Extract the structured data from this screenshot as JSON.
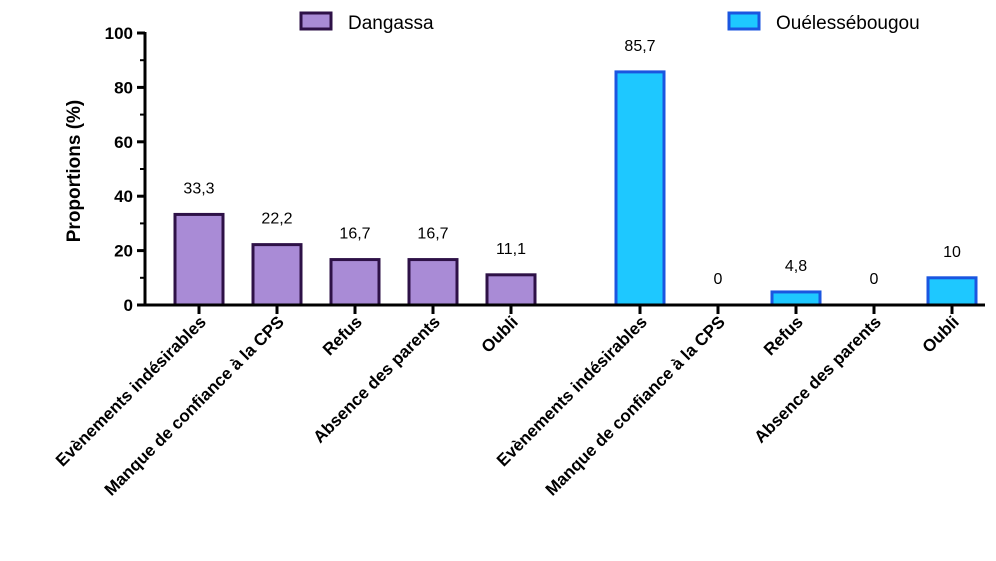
{
  "chart_data": {
    "type": "bar",
    "ylabel": "Proportions (%)",
    "ylim": [
      0,
      100
    ],
    "yticks": [
      0,
      20,
      40,
      60,
      80,
      100
    ],
    "legend_position": "top",
    "series": [
      {
        "name": "Dangassa",
        "color": "#A98BD6",
        "edge_color": "#2E1147",
        "categories": [
          "Evènements indésirables",
          "Manque de confiance à la CPS",
          "Refus",
          "Absence des parents",
          "Oubli"
        ],
        "values": [
          33.3,
          22.2,
          16.7,
          16.7,
          11.1
        ],
        "labels": [
          "33,3",
          "22,2",
          "16,7",
          "16,7",
          "11,1"
        ]
      },
      {
        "name": "Ouélessébougou",
        "color": "#1EC8FF",
        "edge_color": "#1A56E0",
        "categories": [
          "Evènements indésirables",
          "Manque de confiance à la CPS",
          "Refus",
          "Absence des parents",
          "Oubli"
        ],
        "values": [
          85.7,
          0,
          4.8,
          0,
          10
        ],
        "labels": [
          "85,7",
          "0",
          "4,8",
          "0",
          "10"
        ]
      }
    ]
  }
}
